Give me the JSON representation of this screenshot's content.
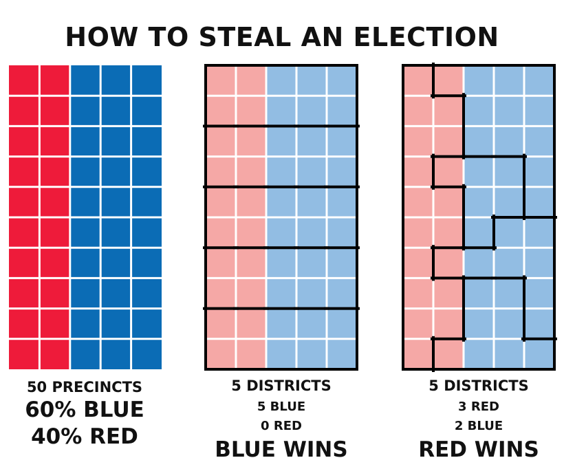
{
  "title": "HOW TO STEAL AN ELECTION",
  "colors": {
    "red": "#ee1b3a",
    "blue": "#0b6cb5",
    "light_red": "#f5a8a6",
    "light_blue": "#92bde3",
    "grid_line": "#ffffff",
    "district_border": "#000000"
  },
  "panels": [
    {
      "name": "precincts",
      "grid": {
        "rows": 10,
        "cols": 5,
        "red_cols": 2
      },
      "style": "solid",
      "districts": null,
      "caption": {
        "line1": "50 PRECINCTS",
        "line2": "60% BLUE",
        "line3": "40% RED"
      }
    },
    {
      "name": "fair-districts",
      "grid": {
        "rows": 10,
        "cols": 5,
        "red_cols": 2
      },
      "style": "light",
      "districts": [
        [
          0,
          0,
          0,
          0,
          0
        ],
        [
          0,
          0,
          0,
          0,
          0
        ],
        [
          1,
          1,
          1,
          1,
          1
        ],
        [
          1,
          1,
          1,
          1,
          1
        ],
        [
          2,
          2,
          2,
          2,
          2
        ],
        [
          2,
          2,
          2,
          2,
          2
        ],
        [
          3,
          3,
          3,
          3,
          3
        ],
        [
          3,
          3,
          3,
          3,
          3
        ],
        [
          4,
          4,
          4,
          4,
          4
        ],
        [
          4,
          4,
          4,
          4,
          4
        ]
      ],
      "caption": {
        "line1": "5 DISTRICTS",
        "line2": "5 BLUE",
        "line3": "0 RED",
        "line4": "BLUE WINS"
      }
    },
    {
      "name": "gerrymandered-districts",
      "grid": {
        "rows": 10,
        "cols": 5,
        "red_cols": 2
      },
      "style": "light",
      "districts": [
        [
          0,
          1,
          1,
          1,
          1
        ],
        [
          0,
          0,
          1,
          1,
          1
        ],
        [
          0,
          0,
          1,
          1,
          1
        ],
        [
          0,
          2,
          2,
          2,
          1
        ],
        [
          0,
          0,
          2,
          2,
          1
        ],
        [
          0,
          0,
          2,
          3,
          3
        ],
        [
          0,
          3,
          3,
          3,
          3
        ],
        [
          0,
          0,
          4,
          4,
          3
        ],
        [
          0,
          0,
          4,
          4,
          3
        ],
        [
          0,
          4,
          4,
          4,
          4
        ]
      ],
      "caption": {
        "line1": "5 DISTRICTS",
        "line2": "3 RED",
        "line3": "2 BLUE",
        "line4": "RED WINS"
      }
    }
  ]
}
